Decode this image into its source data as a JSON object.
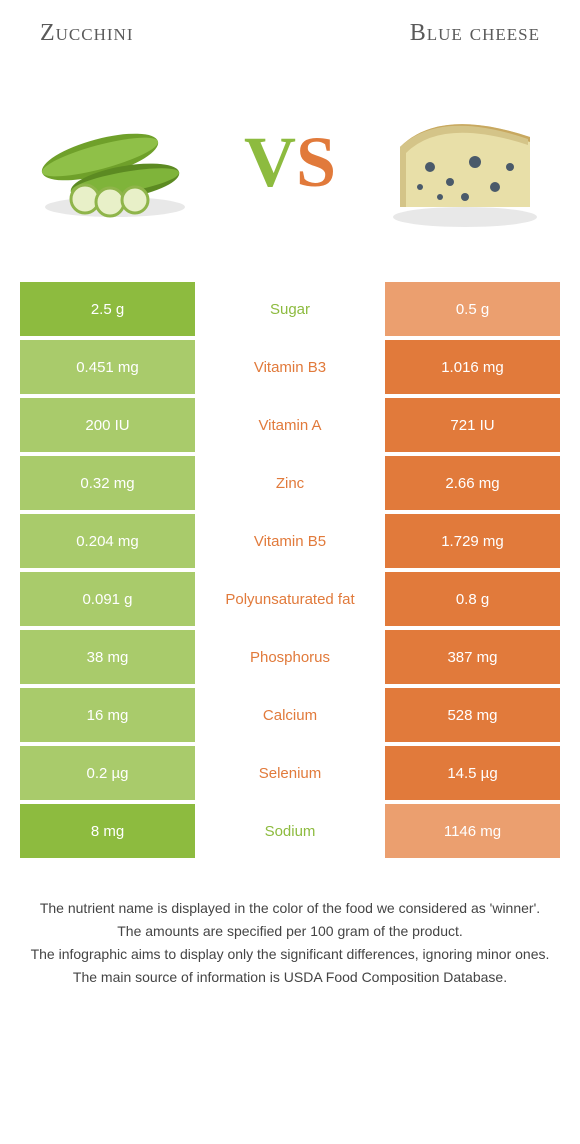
{
  "header": {
    "left_title": "Zucchini",
    "right_title": "Blue cheese"
  },
  "vs": {
    "v": "V",
    "s": "S"
  },
  "colors": {
    "green_win": "#8dbb3f",
    "green_lose": "#a9cb6b",
    "orange_win": "#e17a3b",
    "orange_lose": "#eb9f6f"
  },
  "nutrients": [
    {
      "label": "Sugar",
      "left": "2.5 g",
      "right": "0.5 g",
      "winner": "left"
    },
    {
      "label": "Vitamin B3",
      "left": "0.451 mg",
      "right": "1.016 mg",
      "winner": "right"
    },
    {
      "label": "Vitamin A",
      "left": "200 IU",
      "right": "721 IU",
      "winner": "right"
    },
    {
      "label": "Zinc",
      "left": "0.32 mg",
      "right": "2.66 mg",
      "winner": "right"
    },
    {
      "label": "Vitamin B5",
      "left": "0.204 mg",
      "right": "1.729 mg",
      "winner": "right"
    },
    {
      "label": "Polyunsaturated fat",
      "left": "0.091 g",
      "right": "0.8 g",
      "winner": "right"
    },
    {
      "label": "Phosphorus",
      "left": "38 mg",
      "right": "387 mg",
      "winner": "right"
    },
    {
      "label": "Calcium",
      "left": "16 mg",
      "right": "528 mg",
      "winner": "right"
    },
    {
      "label": "Selenium",
      "left": "0.2 µg",
      "right": "14.5 µg",
      "winner": "right"
    },
    {
      "label": "Sodium",
      "left": "8 mg",
      "right": "1146 mg",
      "winner": "left"
    }
  ],
  "footer": {
    "line1": "The nutrient name is displayed in the color of the food we considered as 'winner'.",
    "line2": "The amounts are specified per 100 gram of the product.",
    "line3": "The infographic aims to display only the significant differences, ignoring minor ones.",
    "line4": "The main source of information is USDA Food Composition Database."
  }
}
